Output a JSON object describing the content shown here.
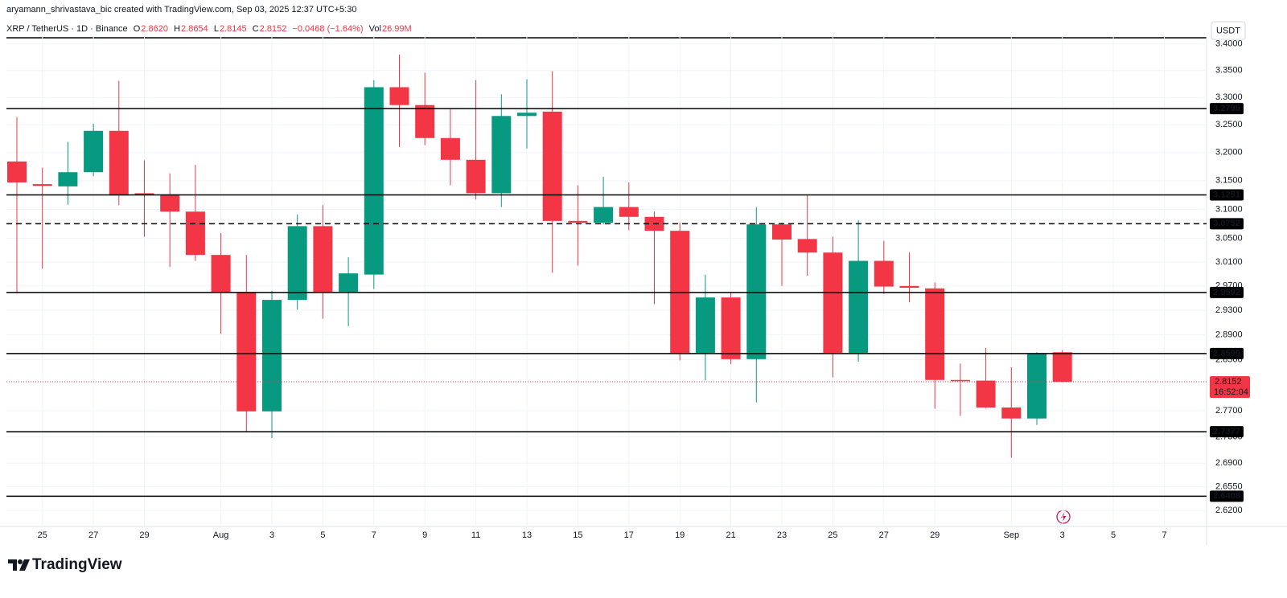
{
  "header": {
    "attribution": "aryamann_shrivastava_bic created with TradingView.com, Sep 03, 2025 12:37 UTC+5:30",
    "symbol": "XRP / TetherUS · 1D · Binance",
    "open_label": "O",
    "open": "2.8620",
    "high_label": "H",
    "high": "2.8654",
    "low_label": "L",
    "low": "2.8145",
    "close_label": "C",
    "close": "2.8152",
    "change": "−0.0468 (−1.64%)",
    "volume_label": "Vol",
    "volume": "26.99M"
  },
  "chart_data": {
    "type": "candlestick",
    "currency": "USDT",
    "categories": [
      null,
      "25",
      null,
      "27",
      null,
      "29",
      null,
      null,
      "Aug",
      null,
      "3",
      null,
      "5",
      null,
      "7",
      null,
      "9",
      null,
      "11",
      null,
      "13",
      null,
      "15",
      null,
      "17",
      null,
      "19",
      null,
      "21",
      null,
      "23",
      null,
      "25",
      null,
      "27",
      null,
      "29",
      null,
      null,
      "Sep",
      null,
      "3",
      null,
      "5",
      null,
      "7"
    ],
    "open": [
      3.184,
      3.144,
      3.14,
      3.165,
      3.239,
      3.128,
      3.126,
      3.096,
      3.022,
      2.959,
      2.769,
      2.947,
      3.071,
      2.959,
      2.989,
      3.319,
      3.286,
      3.226,
      3.187,
      3.128,
      3.266,
      3.274,
      3.08,
      3.077,
      3.104,
      3.087,
      3.063,
      2.86,
      2.951,
      2.851,
      3.074,
      3.049,
      3.026,
      2.86,
      3.012,
      2.97,
      2.966,
      2.818,
      2.817,
      2.775,
      2.758,
      2.862,
      null,
      null,
      null,
      null
    ],
    "high": [
      3.264,
      3.173,
      3.219,
      3.252,
      3.331,
      3.186,
      3.163,
      3.178,
      3.059,
      3.022,
      2.962,
      3.091,
      3.107,
      3.018,
      3.332,
      3.38,
      3.346,
      3.278,
      3.332,
      3.306,
      3.334,
      3.349,
      3.142,
      3.157,
      3.147,
      3.096,
      3.077,
      2.989,
      2.959,
      3.104,
      3.077,
      3.125,
      3.053,
      3.081,
      3.046,
      3.026,
      2.976,
      2.844,
      2.869,
      2.838,
      2.862,
      2.8654,
      null,
      null,
      null,
      null
    ],
    "low": [
      2.958,
      2.999,
      3.108,
      3.158,
      3.107,
      3.053,
      3.002,
      3.012,
      2.892,
      2.738,
      2.728,
      2.931,
      2.916,
      2.904,
      2.965,
      3.21,
      3.213,
      3.142,
      3.117,
      3.104,
      3.207,
      2.992,
      3.004,
      3.074,
      3.064,
      2.94,
      2.849,
      2.817,
      2.843,
      2.783,
      2.97,
      2.987,
      2.822,
      2.847,
      2.957,
      2.943,
      2.773,
      2.762,
      2.774,
      2.698,
      2.748,
      2.8145,
      null,
      null,
      null,
      null
    ],
    "close": [
      3.147,
      3.141,
      3.165,
      3.239,
      3.124,
      3.125,
      3.096,
      3.022,
      2.959,
      2.769,
      2.947,
      3.071,
      2.959,
      2.991,
      3.319,
      3.286,
      3.226,
      3.187,
      3.128,
      3.266,
      3.272,
      3.08,
      3.077,
      3.104,
      3.087,
      3.063,
      2.86,
      2.951,
      2.851,
      3.074,
      3.048,
      3.026,
      2.86,
      3.012,
      2.969,
      2.967,
      2.818,
      2.816,
      2.775,
      2.758,
      2.86,
      2.8152,
      null,
      null,
      null,
      null
    ],
    "up_color": "#089981",
    "down_color": "#f23645",
    "ylim": [
      2.6,
      3.415
    ],
    "log_scale": true,
    "grid": true,
    "yticks": [
      {
        "value": 3.4,
        "label": "3.4000"
      },
      {
        "value": 3.35,
        "label": "3.3500"
      },
      {
        "value": 3.3,
        "label": "3.3000"
      },
      {
        "value": 3.25,
        "label": "3.2500"
      },
      {
        "value": 3.2,
        "label": "3.2000"
      },
      {
        "value": 3.15,
        "label": "3.1500"
      },
      {
        "value": 3.1,
        "label": "3.1000"
      },
      {
        "value": 3.05,
        "label": "3.0500"
      },
      {
        "value": 3.01,
        "label": "3.0100"
      },
      {
        "value": 2.97,
        "label": "2.9700"
      },
      {
        "value": 2.93,
        "label": "2.9300"
      },
      {
        "value": 2.89,
        "label": "2.8900"
      },
      {
        "value": 2.85,
        "label": "2.8500"
      },
      {
        "value": 2.77,
        "label": "2.7700"
      },
      {
        "value": 2.73,
        "label": "2.7300"
      },
      {
        "value": 2.69,
        "label": "2.6900"
      },
      {
        "value": 2.655,
        "label": "2.6550"
      },
      {
        "value": 2.62,
        "label": "2.6200"
      }
    ],
    "levels": {
      "values": [
        3.2795,
        3.1251,
        3.0752,
        2.9592,
        2.8599,
        2.7377,
        2.6408
      ],
      "dashed": [
        false,
        false,
        true,
        false,
        false,
        false,
        false
      ],
      "color": "#000000"
    },
    "last_price": 2.8152,
    "countdown": "16:52:04"
  },
  "footer": {
    "logo": "TradingView"
  }
}
